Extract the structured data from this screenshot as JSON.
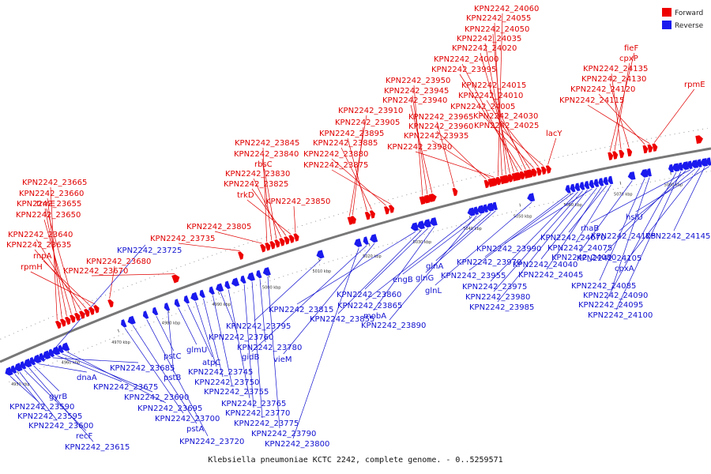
{
  "caption": "Klebsiella pneumoniae KCTC 2242, complete genome. - 0..5259571",
  "colors": {
    "forward": "#ee0000",
    "reverse": "#1a1aee",
    "backbone": "#777777",
    "fwd_label": "#e00000",
    "rev_label": "#1010d0"
  },
  "legend": [
    {
      "label": "Forward",
      "color": "#ee0000"
    },
    {
      "label": "Reverse",
      "color": "#1a1aee"
    }
  ],
  "axis": {
    "unit": "kbp",
    "ticks": [
      {
        "kbp": 4950,
        "label": "4950 kbp"
      },
      {
        "kbp": 4960,
        "label": "4960 kbp"
      },
      {
        "kbp": 4970,
        "label": "4970 kbp"
      },
      {
        "kbp": 4980,
        "label": "4980 kbp"
      },
      {
        "kbp": 4990,
        "label": "4990 kbp"
      },
      {
        "kbp": 5000,
        "label": "5000 kbp"
      },
      {
        "kbp": 5010,
        "label": "5010 kbp"
      },
      {
        "kbp": 5020,
        "label": "5020 kbp"
      },
      {
        "kbp": 5030,
        "label": "5030 kbp"
      },
      {
        "kbp": 5040,
        "label": "5040 kbp"
      },
      {
        "kbp": 5050,
        "label": "5050 kbp"
      },
      {
        "kbp": 5060,
        "label": "5060 kbp"
      },
      {
        "kbp": 5070,
        "label": "5070 kbp"
      },
      {
        "kbp": 5080,
        "label": "5080 kbp"
      }
    ]
  },
  "forward_labels": [
    "KPN2242_23665",
    "KPN2242_23660",
    "KPN2242_23655",
    "KPN2242_23650",
    "trmE",
    "KPN2242_23640",
    "KPN2242_23635",
    "rnpA",
    "rpmH",
    "KPN2242_23680",
    "KPN2242_23670",
    "KPN2242_23735",
    "KPN2242_23805",
    "KPN2242_23845",
    "KPN2242_23840",
    "rbsC",
    "KPN2242_23830",
    "KPN2242_23825",
    "trkD",
    "KPN2242_23850",
    "KPN2242_23910",
    "KPN2242_23905",
    "KPN2242_23895",
    "KPN2242_23885",
    "KPN2242_23880",
    "KPN2242_23875",
    "KPN2242_23950",
    "KPN2242_23945",
    "KPN2242_23940",
    "KPN2242_23965",
    "KPN2242_23960",
    "KPN2242_23935",
    "KPN2242_23930",
    "KPN2242_24060",
    "KPN2242_24055",
    "KPN2242_24050",
    "KPN2242_24035",
    "KPN2242_24020",
    "KPN2242_24000",
    "KPN2242_23995",
    "KPN2242_24015",
    "KPN2242_24010",
    "KPN2242_24005",
    "KPN2242_24030",
    "KPN2242_24025",
    "lacY",
    "fieF",
    "cpxP",
    "KPN2242_24135",
    "KPN2242_24130",
    "KPN2242_24120",
    "KPN2242_24115",
    "rpmE"
  ],
  "reverse_labels": [
    "KPN2242_23590",
    "KPN2242_23595",
    "KPN2242_23600",
    "recF",
    "KPN2242_23615",
    "gyrB",
    "dnaA",
    "KPN2242_23725",
    "KPN2242_23685",
    "KPN2242_23675",
    "KPN2242_23690",
    "KPN2242_23695",
    "KPN2242_23700",
    "pstA",
    "KPN2242_23720",
    "pstC",
    "pstB",
    "glmU",
    "atpC",
    "KPN2242_23745",
    "KPN2242_23750",
    "KPN2242_23755",
    "KPN2242_23760",
    "KPN2242_23765",
    "KPN2242_23770",
    "KPN2242_23775",
    "KPN2242_23780",
    "KPN2242_23790",
    "KPN2242_23795",
    "KPN2242_23800",
    "gidB",
    "vieM",
    "KPN2242_23815",
    "KPN2242_23855",
    "KPN2242_23860",
    "mobA",
    "KPN2242_23865",
    "KPN2242_23890",
    "engB",
    "glnA",
    "glnG",
    "glnL",
    "KPN2242_23970",
    "KPN2242_23955",
    "KPN2242_23975",
    "KPN2242_23980",
    "KPN2242_23985",
    "KPN2242_23990",
    "KPN2242_24040",
    "KPN2242_24045",
    "KPN2242_24070",
    "KPN2242_24075",
    "KPN2242_24080",
    "KPN2242_24085",
    "KPN2242_24090",
    "KPN2242_24095",
    "KPN2242_24100",
    "KPN2242_24105",
    "rhaB",
    "KPN2242_24125",
    "cpxA",
    "KPN2242_24145",
    "hslU"
  ]
}
